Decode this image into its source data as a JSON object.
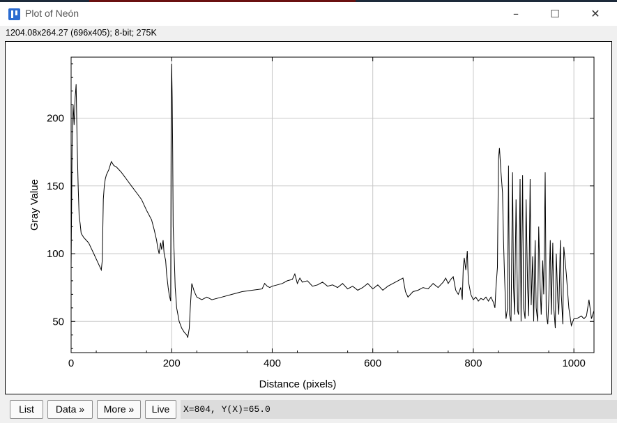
{
  "window": {
    "title": "Plot of Neón",
    "minimize_glyph": "–",
    "maximize_glyph": "☐",
    "close_glyph": "✕"
  },
  "image_info": "1204.08x264.27   (696x405); 8-bit; 275K",
  "buttons": {
    "list": "List",
    "data": "Data »",
    "more": "More »",
    "live": "Live"
  },
  "readout": "X=804, Y(X)=65.0",
  "colors": {
    "line": "#000000",
    "grid": "#c8c8c8",
    "accent": "#2b6cd1"
  },
  "chart_data": {
    "type": "line",
    "xlabel": "Distance (pixels)",
    "ylabel": "Gray Value",
    "xlim": [
      0,
      1040
    ],
    "ylim": [
      27,
      245
    ],
    "x_ticks": [
      0,
      200,
      400,
      600,
      800,
      1000
    ],
    "y_ticks": [
      50,
      100,
      150,
      200
    ],
    "grid": true,
    "series": [
      {
        "x": [
          0,
          2,
          4,
          6,
          8,
          10,
          12,
          14,
          16,
          18,
          20,
          25,
          30,
          35,
          40,
          45,
          50,
          55,
          60,
          62,
          64,
          66,
          68,
          70,
          75,
          80,
          85,
          90,
          95,
          100,
          110,
          120,
          130,
          140,
          150,
          160,
          165,
          170,
          172,
          175,
          178,
          180,
          183,
          185,
          188,
          190,
          193,
          195,
          198,
          199,
          200,
          201,
          202,
          203,
          205,
          207,
          210,
          215,
          220,
          225,
          230,
          232,
          235,
          237,
          240,
          245,
          250,
          260,
          270,
          280,
          290,
          300,
          320,
          340,
          360,
          380,
          385,
          390,
          395,
          400,
          410,
          420,
          430,
          440,
          445,
          450,
          455,
          460,
          470,
          480,
          490,
          500,
          510,
          520,
          530,
          540,
          550,
          560,
          570,
          580,
          590,
          600,
          610,
          620,
          630,
          640,
          650,
          660,
          665,
          670,
          675,
          680,
          690,
          700,
          710,
          720,
          730,
          740,
          745,
          750,
          755,
          760,
          765,
          770,
          775,
          778,
          780,
          782,
          785,
          788,
          790,
          795,
          800,
          805,
          810,
          815,
          820,
          825,
          830,
          835,
          840,
          843,
          845,
          848,
          850,
          852,
          855,
          858,
          860,
          862,
          865,
          868,
          870,
          872,
          875,
          878,
          880,
          882,
          885,
          888,
          890,
          893,
          895,
          898,
          900,
          903,
          905,
          908,
          910,
          913,
          915,
          918,
          920,
          923,
          925,
          928,
          930,
          933,
          935,
          938,
          940,
          943,
          945,
          948,
          950,
          953,
          955,
          958,
          960,
          963,
          965,
          968,
          970,
          973,
          975,
          978,
          980,
          985,
          990,
          995,
          1000,
          1005,
          1010,
          1015,
          1020,
          1025,
          1030,
          1035,
          1040
        ],
        "y": [
          90,
          180,
          210,
          195,
          215,
          225,
          180,
          150,
          128,
          122,
          115,
          112,
          110,
          108,
          104,
          100,
          96,
          92,
          88,
          95,
          140,
          150,
          155,
          158,
          162,
          168,
          165,
          164,
          162,
          160,
          155,
          150,
          145,
          140,
          132,
          125,
          118,
          110,
          105,
          100,
          108,
          103,
          110,
          100,
          95,
          85,
          75,
          70,
          65,
          200,
          240,
          215,
          175,
          120,
          100,
          75,
          60,
          50,
          45,
          42,
          40,
          38,
          45,
          60,
          78,
          72,
          68,
          66,
          68,
          66,
          67,
          68,
          70,
          72,
          73,
          74,
          78,
          76,
          75,
          76,
          77,
          78,
          80,
          81,
          85,
          78,
          82,
          79,
          80,
          76,
          77,
          79,
          76,
          77,
          75,
          78,
          74,
          76,
          73,
          75,
          78,
          74,
          77,
          73,
          76,
          78,
          80,
          82,
          72,
          68,
          70,
          72,
          73,
          75,
          74,
          78,
          75,
          79,
          82,
          78,
          81,
          83,
          73,
          70,
          75,
          66,
          90,
          97,
          88,
          102,
          80,
          70,
          66,
          68,
          65,
          67,
          66,
          68,
          65,
          68,
          64,
          60,
          75,
          90,
          170,
          178,
          160,
          145,
          110,
          85,
          52,
          60,
          165,
          55,
          50,
          160,
          75,
          55,
          140,
          58,
          55,
          155,
          50,
          158,
          60,
          52,
          140,
          75,
          54,
          155,
          62,
          98,
          50,
          110,
          60,
          50,
          120,
          75,
          55,
          95,
          70,
          160,
          55,
          48,
          65,
          110,
          55,
          108,
          60,
          45,
          100,
          65,
          55,
          110,
          70,
          48,
          105,
          85,
          60,
          47,
          52,
          52,
          53,
          54,
          52,
          54,
          66,
          52,
          58
        ]
      }
    ]
  }
}
